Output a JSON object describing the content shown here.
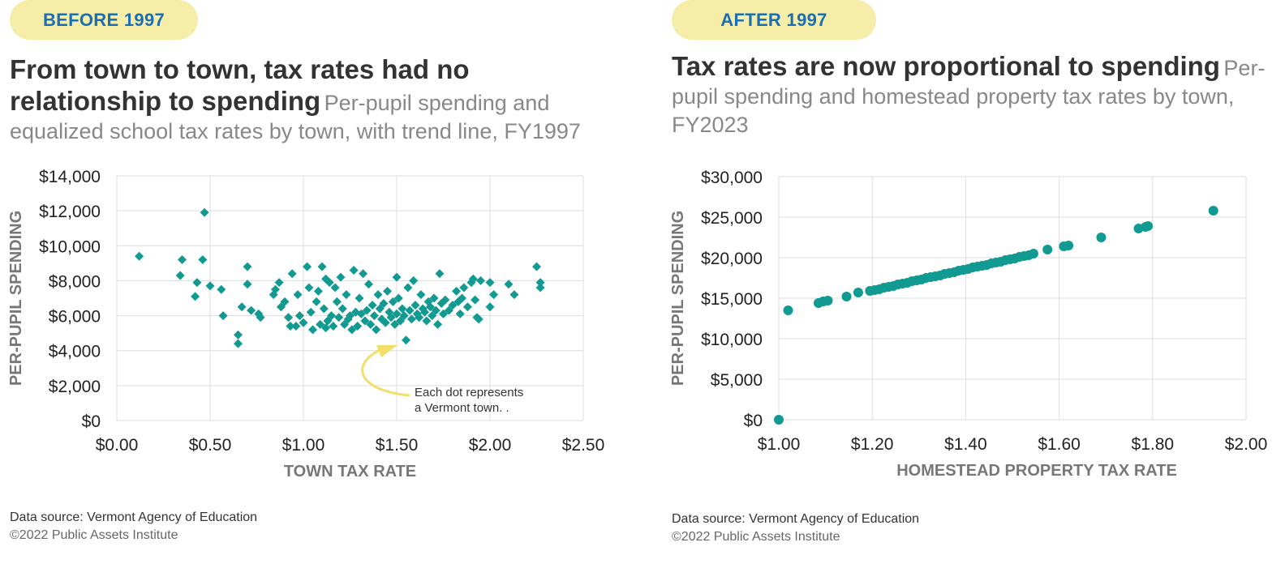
{
  "left": {
    "badge": "BEFORE 1997",
    "headline": "From town to town, tax rates had no relationship to spending",
    "subtitle": "Per-pupil spending and equalized school tax rates by town, with trend line, FY1997",
    "source": "Data source: Vermont Agency of Education",
    "copyright": "©2022 Public Assets Institute",
    "annotation": [
      "Each dot represents",
      "a Vermont town. ."
    ]
  },
  "right": {
    "badge": "AFTER 1997",
    "headline": "Tax rates are now proportional to spending",
    "subtitle": "Per-pupil spending and homestead property tax rates by town, FY2023",
    "source": "Data source: Vermont Agency of Education",
    "copyright": "©2022 Public Assets Institute"
  },
  "colors": {
    "marker": "#109a92",
    "badge_bg": "#f6eea8",
    "badge_text": "#1a6fb4",
    "annotation_arrow": "#f2df6a",
    "grid": "#dcdcdc"
  },
  "chart_data": [
    {
      "type": "scatter",
      "marker": "diamond",
      "xlabel": "TOWN TAX RATE",
      "ylabel": "PER-PUPIL SPENDING",
      "xlim": [
        0,
        2.5
      ],
      "ylim": [
        0,
        14000
      ],
      "xticks": [
        0,
        0.5,
        1.0,
        1.5,
        2.0,
        2.5
      ],
      "yticks": [
        0,
        2000,
        4000,
        6000,
        8000,
        10000,
        12000,
        14000
      ],
      "xtick_labels": [
        "$0.00",
        "$0.50",
        "$1.00",
        "$1.50",
        "$2.00",
        "$2.50"
      ],
      "ytick_labels": [
        "$0",
        "$2,000",
        "$4,000",
        "$6,000",
        "$8,000",
        "$10,000",
        "$12,000",
        "$14,000"
      ],
      "grid": true,
      "points": [
        [
          0.12,
          9400
        ],
        [
          0.35,
          9200
        ],
        [
          0.34,
          8300
        ],
        [
          0.46,
          9200
        ],
        [
          0.47,
          11900
        ],
        [
          0.42,
          7100
        ],
        [
          0.43,
          7900
        ],
        [
          0.5,
          7700
        ],
        [
          0.56,
          7500
        ],
        [
          0.57,
          6000
        ],
        [
          0.65,
          4900
        ],
        [
          0.65,
          4400
        ],
        [
          0.67,
          6500
        ],
        [
          0.7,
          8800
        ],
        [
          0.7,
          7800
        ],
        [
          0.72,
          6300
        ],
        [
          0.76,
          6100
        ],
        [
          0.77,
          5900
        ],
        [
          0.84,
          7200
        ],
        [
          0.85,
          7500
        ],
        [
          0.87,
          7900
        ],
        [
          0.88,
          6500
        ],
        [
          0.9,
          6800
        ],
        [
          0.92,
          5900
        ],
        [
          0.93,
          5400
        ],
        [
          0.94,
          8400
        ],
        [
          0.96,
          5400
        ],
        [
          0.97,
          7200
        ],
        [
          0.98,
          6000
        ],
        [
          1.0,
          5600
        ],
        [
          1.02,
          8800
        ],
        [
          1.03,
          7600
        ],
        [
          1.04,
          6200
        ],
        [
          1.05,
          5200
        ],
        [
          1.07,
          6800
        ],
        [
          1.08,
          7400
        ],
        [
          1.09,
          5500
        ],
        [
          1.1,
          8800
        ],
        [
          1.11,
          6400
        ],
        [
          1.12,
          5300
        ],
        [
          1.12,
          8100
        ],
        [
          1.13,
          5700
        ],
        [
          1.14,
          7900
        ],
        [
          1.15,
          6000
        ],
        [
          1.16,
          5400
        ],
        [
          1.17,
          7600
        ],
        [
          1.18,
          6800
        ],
        [
          1.19,
          5900
        ],
        [
          1.2,
          8200
        ],
        [
          1.21,
          6400
        ],
        [
          1.22,
          5500
        ],
        [
          1.23,
          7200
        ],
        [
          1.24,
          5800
        ],
        [
          1.25,
          6000
        ],
        [
          1.26,
          5200
        ],
        [
          1.27,
          8600
        ],
        [
          1.28,
          6200
        ],
        [
          1.29,
          5400
        ],
        [
          1.3,
          7000
        ],
        [
          1.31,
          6100
        ],
        [
          1.32,
          8400
        ],
        [
          1.33,
          5700
        ],
        [
          1.34,
          6300
        ],
        [
          1.35,
          7800
        ],
        [
          1.36,
          5500
        ],
        [
          1.37,
          6600
        ],
        [
          1.38,
          6000
        ],
        [
          1.39,
          5200
        ],
        [
          1.4,
          7200
        ],
        [
          1.41,
          6400
        ],
        [
          1.42,
          5800
        ],
        [
          1.43,
          6700
        ],
        [
          1.44,
          5600
        ],
        [
          1.45,
          7400
        ],
        [
          1.46,
          6200
        ],
        [
          1.47,
          5900
        ],
        [
          1.48,
          6800
        ],
        [
          1.49,
          5500
        ],
        [
          1.5,
          8200
        ],
        [
          1.5,
          6100
        ],
        [
          1.51,
          7000
        ],
        [
          1.52,
          5700
        ],
        [
          1.53,
          6400
        ],
        [
          1.54,
          6000
        ],
        [
          1.55,
          4600
        ],
        [
          1.56,
          7600
        ],
        [
          1.57,
          6300
        ],
        [
          1.58,
          5800
        ],
        [
          1.59,
          8000
        ],
        [
          1.6,
          6600
        ],
        [
          1.61,
          6100
        ],
        [
          1.62,
          5900
        ],
        [
          1.63,
          7200
        ],
        [
          1.64,
          6400
        ],
        [
          1.65,
          6200
        ],
        [
          1.66,
          5700
        ],
        [
          1.67,
          6800
        ],
        [
          1.68,
          6500
        ],
        [
          1.69,
          6000
        ],
        [
          1.7,
          7000
        ],
        [
          1.71,
          6300
        ],
        [
          1.72,
          5500
        ],
        [
          1.73,
          8400
        ],
        [
          1.74,
          6700
        ],
        [
          1.75,
          6100
        ],
        [
          1.76,
          6900
        ],
        [
          1.78,
          6300
        ],
        [
          1.8,
          6600
        ],
        [
          1.82,
          7400
        ],
        [
          1.83,
          6800
        ],
        [
          1.84,
          6100
        ],
        [
          1.85,
          7000
        ],
        [
          1.86,
          7600
        ],
        [
          1.88,
          6500
        ],
        [
          1.9,
          7900
        ],
        [
          1.91,
          8100
        ],
        [
          1.92,
          6900
        ],
        [
          1.93,
          5900
        ],
        [
          1.94,
          5800
        ],
        [
          1.95,
          8000
        ],
        [
          2.0,
          7900
        ],
        [
          2.02,
          7200
        ],
        [
          2.0,
          6500
        ],
        [
          2.1,
          7800
        ],
        [
          2.13,
          7200
        ],
        [
          2.25,
          8800
        ],
        [
          2.27,
          7900
        ],
        [
          2.27,
          7600
        ]
      ]
    },
    {
      "type": "scatter",
      "marker": "circle",
      "xlabel": "HOMESTEAD PROPERTY TAX RATE",
      "ylabel": "PER-PUPIL SPENDING",
      "xlim": [
        1.0,
        2.0
      ],
      "ylim": [
        0,
        30000
      ],
      "xticks": [
        1.0,
        1.2,
        1.4,
        1.6,
        1.8,
        2.0
      ],
      "yticks": [
        0,
        5000,
        10000,
        15000,
        20000,
        25000,
        30000
      ],
      "xtick_labels": [
        "$1.00",
        "$1.20",
        "$1.40",
        "$1.60",
        "$1.80",
        "$2.00"
      ],
      "ytick_labels": [
        "$0",
        "$5,000",
        "$10,000",
        "$15,000",
        "$20,000",
        "$25,000",
        "$30,000"
      ],
      "grid": true,
      "points": [
        [
          1.0,
          0
        ],
        [
          1.02,
          13500
        ],
        [
          1.085,
          14400
        ],
        [
          1.095,
          14600
        ],
        [
          1.105,
          14700
        ],
        [
          1.145,
          15200
        ],
        [
          1.17,
          15700
        ],
        [
          1.195,
          15900
        ],
        [
          1.205,
          16000
        ],
        [
          1.215,
          16100
        ],
        [
          1.225,
          16300
        ],
        [
          1.235,
          16400
        ],
        [
          1.245,
          16500
        ],
        [
          1.255,
          16700
        ],
        [
          1.265,
          16800
        ],
        [
          1.275,
          16900
        ],
        [
          1.285,
          17100
        ],
        [
          1.295,
          17200
        ],
        [
          1.305,
          17300
        ],
        [
          1.315,
          17500
        ],
        [
          1.325,
          17600
        ],
        [
          1.335,
          17700
        ],
        [
          1.345,
          17800
        ],
        [
          1.355,
          18000
        ],
        [
          1.365,
          18100
        ],
        [
          1.375,
          18200
        ],
        [
          1.385,
          18400
        ],
        [
          1.395,
          18500
        ],
        [
          1.405,
          18600
        ],
        [
          1.415,
          18800
        ],
        [
          1.425,
          18900
        ],
        [
          1.435,
          19000
        ],
        [
          1.445,
          19100
        ],
        [
          1.455,
          19300
        ],
        [
          1.465,
          19400
        ],
        [
          1.475,
          19500
        ],
        [
          1.485,
          19700
        ],
        [
          1.495,
          19800
        ],
        [
          1.505,
          19900
        ],
        [
          1.515,
          20100
        ],
        [
          1.525,
          20200
        ],
        [
          1.535,
          20300
        ],
        [
          1.545,
          20500
        ],
        [
          1.575,
          21000
        ],
        [
          1.61,
          21400
        ],
        [
          1.62,
          21500
        ],
        [
          1.69,
          22500
        ],
        [
          1.77,
          23600
        ],
        [
          1.785,
          23800
        ],
        [
          1.79,
          23900
        ],
        [
          1.93,
          25800
        ]
      ]
    }
  ]
}
